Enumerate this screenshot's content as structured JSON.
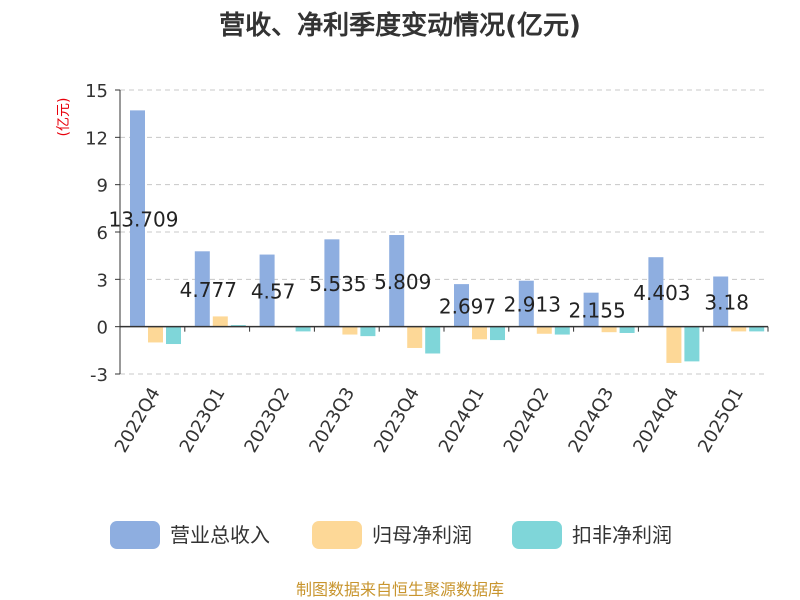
{
  "chart_data": {
    "type": "bar",
    "title": "营收、净利季度变动情况(亿元)",
    "ylabel": "(亿元)",
    "xlabel": "",
    "ylim": [
      -3,
      15
    ],
    "yticks": [
      "15",
      "12",
      "9",
      "6",
      "3",
      "0",
      "-3"
    ],
    "ytick_values": [
      15,
      12,
      9,
      6,
      3,
      0,
      -3
    ],
    "grid": true,
    "legend_position": "bottom",
    "categories": [
      "2022Q4",
      "2023Q1",
      "2023Q2",
      "2023Q3",
      "2023Q4",
      "2024Q1",
      "2024Q2",
      "2024Q3",
      "2024Q4",
      "2025Q1"
    ],
    "series": [
      {
        "name": "营业总收入",
        "color": "#8eaee0",
        "values": [
          13.709,
          4.777,
          4.57,
          5.535,
          5.809,
          2.697,
          2.913,
          2.155,
          4.403,
          3.18
        ],
        "data_labels": [
          "13.709",
          "4.777",
          "4.57",
          "5.535",
          "5.809",
          "2.697",
          "2.913",
          "2.155",
          "4.403",
          "3.18"
        ]
      },
      {
        "name": "归母净利润",
        "color": "#fdd897",
        "values": [
          -1.0,
          0.65,
          -0.05,
          -0.5,
          -1.35,
          -0.8,
          -0.45,
          -0.35,
          -2.3,
          -0.3
        ]
      },
      {
        "name": "扣非净利润",
        "color": "#7fd6d9",
        "values": [
          -1.1,
          0.1,
          -0.3,
          -0.6,
          -1.7,
          -0.85,
          -0.5,
          -0.4,
          -2.2,
          -0.3
        ]
      }
    ]
  },
  "source": "制图数据来自恒生聚源数据库"
}
